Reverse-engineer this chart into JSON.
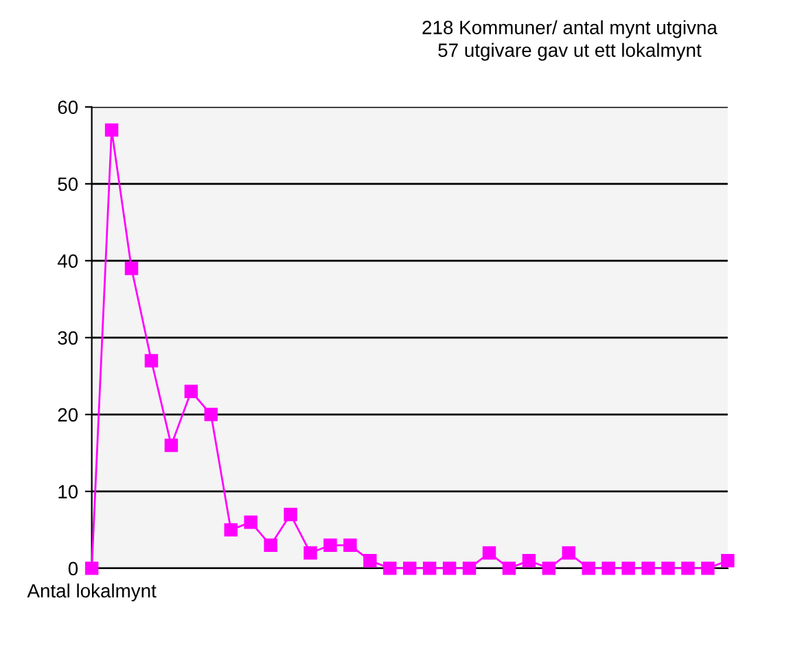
{
  "chart_data": {
    "type": "line",
    "title": "218 Kommuner/ antal mynt utgivna",
    "subtitle": "57 utgivare gav ut ett lokalmynt",
    "categories": [
      "Antal lokalmynt",
      null,
      null,
      null,
      null,
      null,
      null,
      null,
      null,
      null,
      null,
      null,
      null,
      null,
      null,
      null,
      null,
      null,
      null,
      null,
      null,
      null,
      null,
      null,
      null,
      null,
      null,
      null,
      null,
      null,
      null,
      null,
      null
    ],
    "series": [
      {
        "color": "#ff00ff",
        "values": [
          0,
          57,
          39,
          27,
          16,
          23,
          20,
          5,
          6,
          3,
          7,
          2,
          3,
          3,
          1,
          0,
          0,
          0,
          0,
          0,
          2,
          0,
          1,
          0,
          2,
          0,
          0,
          0,
          0,
          0,
          0,
          0,
          1
        ]
      }
    ],
    "ylim": [
      0,
      60
    ],
    "yticks": [
      0,
      10,
      20,
      30,
      40,
      50,
      60
    ],
    "grid": "y",
    "marker": "square",
    "line_style": "solid"
  }
}
